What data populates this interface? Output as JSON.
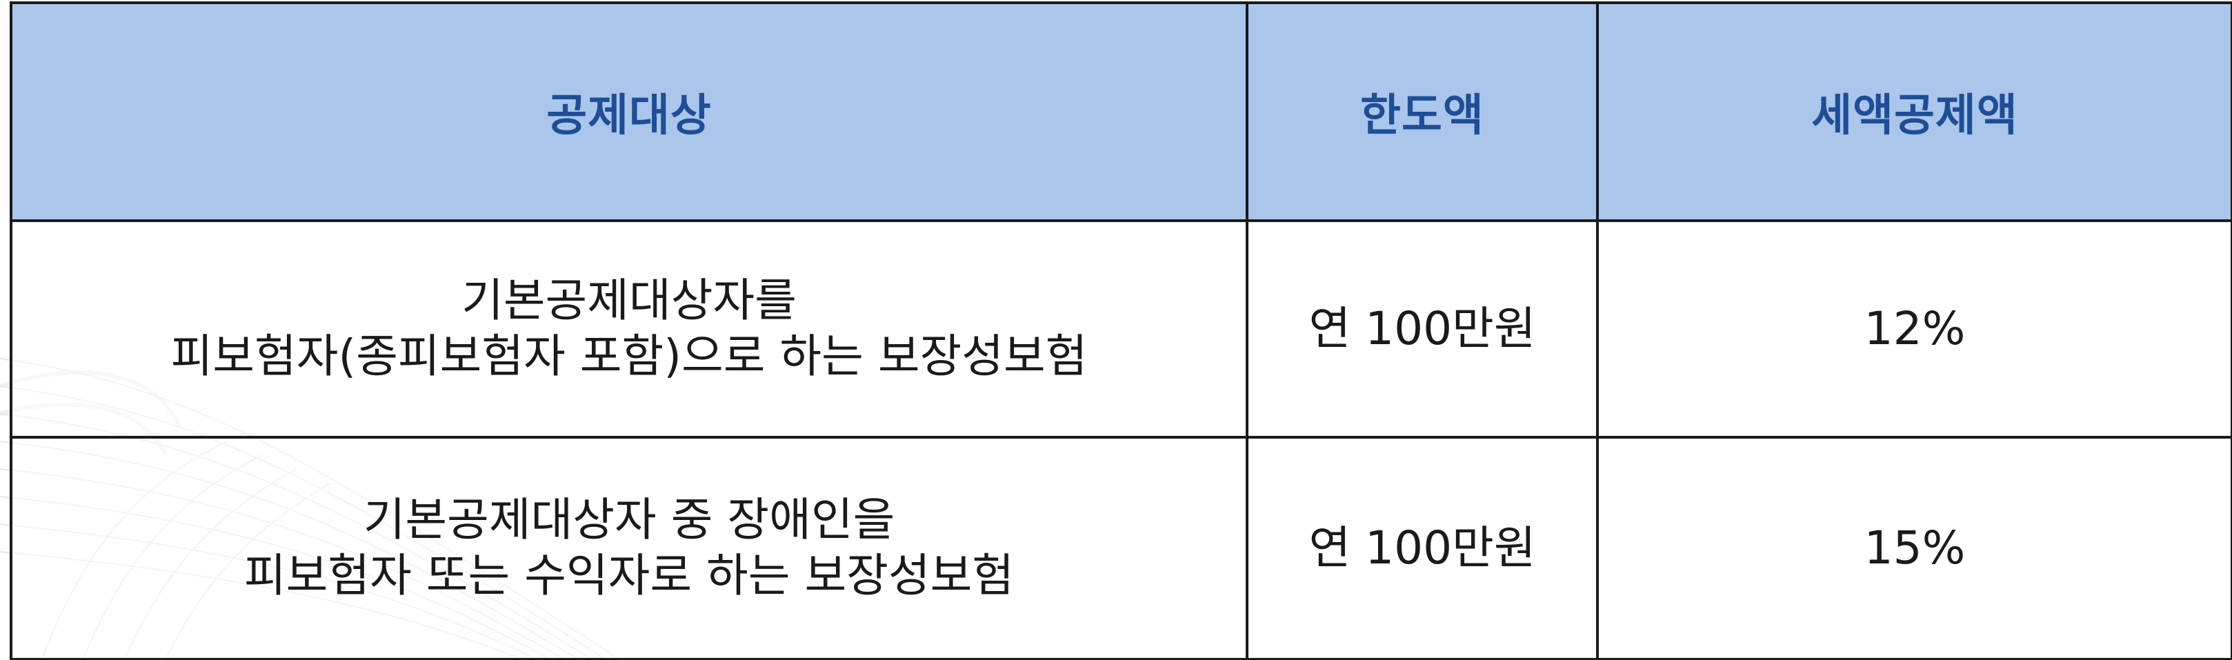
{
  "table": {
    "headers": {
      "target": "공제대상",
      "limit": "한도액",
      "rate": "세액공제액"
    },
    "rows": [
      {
        "target_line1": "기본공제대상자를",
        "target_line2": "피보험자(종피보험자 포함)으로 하는 보장성보험",
        "limit": "연 100만원",
        "rate": "12%"
      },
      {
        "target_line1": "기본공제대상자 중 장애인을",
        "target_line2": "피보험자 또는 수익자로 하는 보장성보험",
        "limit": "연 100만원",
        "rate": "15%"
      }
    ]
  },
  "colors": {
    "header_background": "#abc6eb",
    "header_text": "#1f4e96",
    "border": "#1a1a1a",
    "body_text": "#1a1a1a"
  }
}
